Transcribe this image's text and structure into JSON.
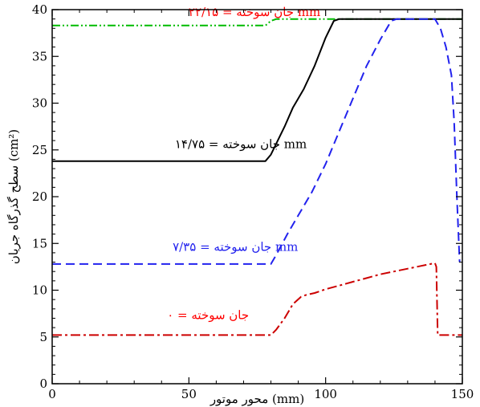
{
  "chart_data": {
    "type": "line",
    "title": "",
    "xlabel": "محور موتور (mm)",
    "ylabel": "سطح گذرگاه جریان (cm²)",
    "xlim": [
      0,
      150
    ],
    "ylim": [
      0,
      40
    ],
    "xticks": [
      0,
      50,
      100,
      150
    ],
    "yticks": [
      0,
      5,
      10,
      15,
      20,
      25,
      30,
      35,
      40
    ],
    "grid": false,
    "series": [
      {
        "name": "جان سوخته = ۲۲/۱۵ mm",
        "color": "#00bb00",
        "dash": "dashdotdot",
        "points": [
          [
            0,
            38.3
          ],
          [
            78,
            38.3
          ],
          [
            80,
            38.8
          ],
          [
            82,
            39.0
          ],
          [
            104,
            39.0
          ],
          [
            150,
            39.0
          ]
        ]
      },
      {
        "name": "جان سوخته = ۱۴/۷۵ mm",
        "color": "#000000",
        "dash": "solid",
        "points": [
          [
            0,
            23.8
          ],
          [
            78,
            23.8
          ],
          [
            80,
            24.5
          ],
          [
            85,
            27.5
          ],
          [
            88,
            29.5
          ],
          [
            92,
            31.5
          ],
          [
            96,
            34.0
          ],
          [
            100,
            37.0
          ],
          [
            103,
            38.8
          ],
          [
            105,
            39.0
          ],
          [
            150,
            39.0
          ]
        ]
      },
      {
        "name": "جان سوخته = ۷/۳۵ mm",
        "color": "#2222ee",
        "dash": "dashed",
        "points": [
          [
            0,
            12.8
          ],
          [
            80,
            12.8
          ],
          [
            82,
            13.8
          ],
          [
            86,
            16.0
          ],
          [
            90,
            18.0
          ],
          [
            95,
            20.5
          ],
          [
            100,
            23.5
          ],
          [
            105,
            27.0
          ],
          [
            110,
            30.5
          ],
          [
            115,
            34.0
          ],
          [
            120,
            36.8
          ],
          [
            124,
            38.8
          ],
          [
            126,
            39.0
          ],
          [
            140,
            39.0
          ],
          [
            142,
            38.0
          ],
          [
            144,
            36.0
          ],
          [
            146,
            33.0
          ],
          [
            147,
            28.0
          ],
          [
            148,
            20.0
          ],
          [
            149,
            13.0
          ]
        ]
      },
      {
        "name": "جان سوخته = ۰",
        "color": "#cc0000",
        "dash": "dashdot",
        "points": [
          [
            0,
            5.2
          ],
          [
            80,
            5.2
          ],
          [
            82,
            5.8
          ],
          [
            85,
            7.0
          ],
          [
            88,
            8.5
          ],
          [
            91,
            9.3
          ],
          [
            93,
            9.5
          ],
          [
            96,
            9.7
          ],
          [
            100,
            10.1
          ],
          [
            105,
            10.5
          ],
          [
            110,
            10.9
          ],
          [
            115,
            11.3
          ],
          [
            120,
            11.7
          ],
          [
            125,
            12.0
          ],
          [
            130,
            12.3
          ],
          [
            135,
            12.6
          ],
          [
            140,
            12.9
          ],
          [
            140.5,
            12.5
          ],
          [
            141,
            5.2
          ],
          [
            150,
            5.2
          ]
        ]
      }
    ],
    "annotations": [
      {
        "text": "جان سوخته = ۲۲/۱۵ mm",
        "color": "#ff0000",
        "x": 74,
        "y": 39.3
      },
      {
        "text": "جان سوخته = ۱۴/۷۵ mm",
        "color": "#000000",
        "x": 69,
        "y": 25.2
      },
      {
        "text": "جان سوخته = ۷/۳۵ mm",
        "color": "#2222ee",
        "x": 67,
        "y": 14.2
      },
      {
        "text": "جان سوخته = ۰",
        "color": "#ff0000",
        "x": 57,
        "y": 6.9
      }
    ]
  }
}
